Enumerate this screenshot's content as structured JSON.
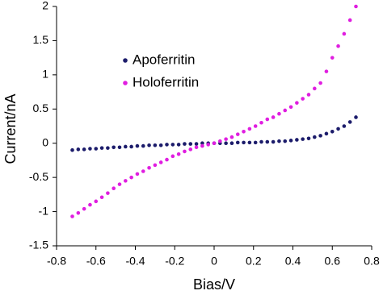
{
  "chart_data": {
    "type": "scatter",
    "x_label": "Bias/V",
    "y_label": "Current/nA",
    "x": [
      -0.72,
      -0.69,
      -0.66,
      -0.63,
      -0.6,
      -0.57,
      -0.54,
      -0.51,
      -0.48,
      -0.45,
      -0.42,
      -0.39,
      -0.36,
      -0.33,
      -0.3,
      -0.27,
      -0.24,
      -0.21,
      -0.18,
      -0.15,
      -0.12,
      -0.09,
      -0.06,
      -0.03,
      0,
      0.03,
      0.06,
      0.09,
      0.12,
      0.15,
      0.18,
      0.21,
      0.24,
      0.27,
      0.3,
      0.33,
      0.36,
      0.39,
      0.42,
      0.45,
      0.48,
      0.51,
      0.54,
      0.57,
      0.6,
      0.63,
      0.66,
      0.69,
      0.72
    ],
    "series": [
      {
        "name": "Apoferritin",
        "color": "#1c1c6b",
        "values": [
          -0.1,
          -0.09,
          -0.09,
          -0.08,
          -0.08,
          -0.07,
          -0.07,
          -0.06,
          -0.06,
          -0.05,
          -0.05,
          -0.04,
          -0.04,
          -0.03,
          -0.03,
          -0.03,
          -0.02,
          -0.02,
          -0.02,
          -0.01,
          -0.01,
          -0.01,
          0,
          0,
          0,
          0,
          0,
          0,
          0.01,
          0.01,
          0.01,
          0.01,
          0.02,
          0.02,
          0.02,
          0.03,
          0.03,
          0.04,
          0.05,
          0.06,
          0.07,
          0.09,
          0.11,
          0.14,
          0.17,
          0.21,
          0.25,
          0.31,
          0.38
        ]
      },
      {
        "name": "Holoferritin",
        "color": "#e01ee0",
        "values": [
          -1.07,
          -1.02,
          -0.96,
          -0.9,
          -0.85,
          -0.79,
          -0.73,
          -0.66,
          -0.6,
          -0.55,
          -0.5,
          -0.45,
          -0.41,
          -0.36,
          -0.32,
          -0.28,
          -0.24,
          -0.19,
          -0.16,
          -0.12,
          -0.09,
          -0.06,
          -0.04,
          -0.02,
          0,
          0.03,
          0.06,
          0.09,
          0.13,
          0.17,
          0.21,
          0.25,
          0.3,
          0.35,
          0.38,
          0.43,
          0.48,
          0.53,
          0.59,
          0.65,
          0.71,
          0.8,
          0.88,
          1.05,
          1.25,
          1.42,
          1.6,
          1.8,
          2.0
        ]
      }
    ],
    "xlim": [
      -0.8,
      0.8
    ],
    "xticks": [
      -0.8,
      -0.6,
      -0.4,
      -0.2,
      0,
      0.2,
      0.4,
      0.6,
      0.8
    ],
    "ylim": [
      -1.5,
      2
    ],
    "yticks": [
      -1.5,
      -1,
      -0.5,
      0,
      0.5,
      1,
      1.5,
      2
    ],
    "grid": false,
    "legend": "upper left"
  }
}
